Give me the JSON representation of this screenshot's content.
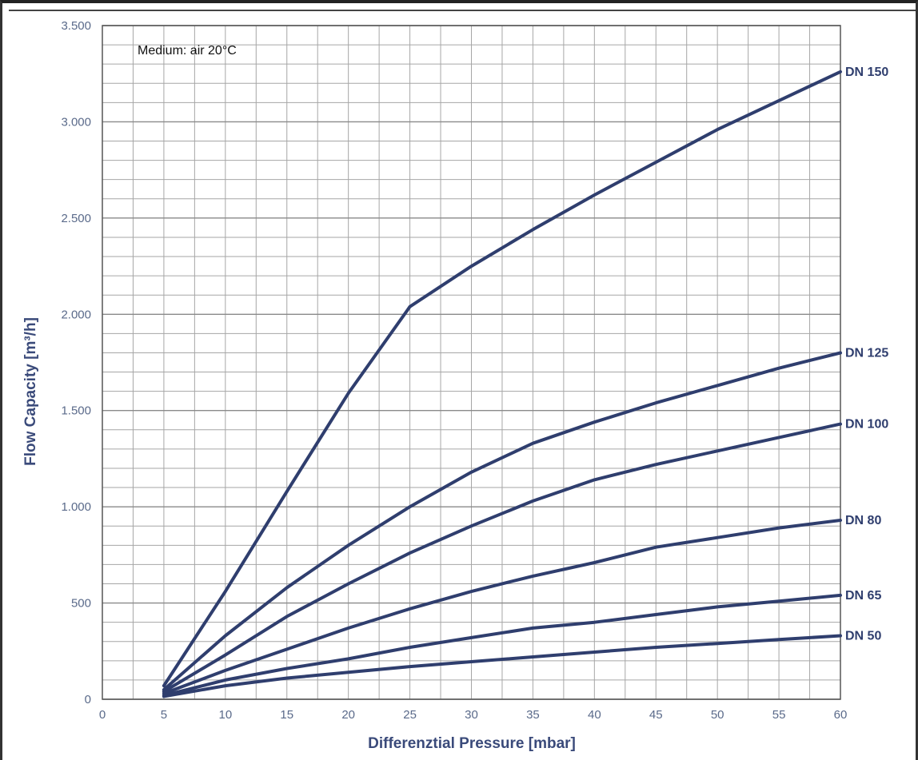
{
  "chart_data": {
    "type": "line",
    "title": "",
    "annotation": "Medium: air  20°C",
    "xlabel": "Differenztial Pressure [mbar]",
    "ylabel": "Flow Capacity [m³/h]",
    "xlim": [
      0,
      60
    ],
    "ylim": [
      0,
      3500
    ],
    "x_ticks": [
      0,
      5,
      10,
      15,
      20,
      25,
      30,
      35,
      40,
      45,
      50,
      55,
      60
    ],
    "x_tick_labels": [
      "0",
      "5",
      "10",
      "15",
      "20",
      "25",
      "30",
      "35",
      "40",
      "45",
      "50",
      "55",
      "60"
    ],
    "y_ticks": [
      0,
      500,
      1000,
      1500,
      2000,
      2500,
      3000,
      3500
    ],
    "y_tick_labels": [
      "0",
      "500",
      "1.000",
      "1.500",
      "2.000",
      "2.500",
      "3.000",
      "3.500"
    ],
    "grid": true,
    "legend_placement": "right-end labels",
    "line_color": "#2f3e6e",
    "grid_color": "#a6a6a6",
    "series": [
      {
        "name": "DN 150",
        "x": [
          5,
          10,
          15,
          20,
          25,
          30,
          35,
          40,
          45,
          50,
          55,
          60
        ],
        "y": [
          70,
          560,
          1080,
          1590,
          2040,
          2250,
          2440,
          2620,
          2790,
          2960,
          3110,
          3260
        ]
      },
      {
        "name": "DN 125",
        "x": [
          5,
          10,
          15,
          20,
          25,
          30,
          35,
          40,
          45,
          50,
          55,
          60
        ],
        "y": [
          50,
          330,
          580,
          800,
          1000,
          1180,
          1330,
          1440,
          1540,
          1630,
          1720,
          1800
        ]
      },
      {
        "name": "DN 100",
        "x": [
          5,
          10,
          15,
          20,
          25,
          30,
          35,
          40,
          45,
          50,
          55,
          60
        ],
        "y": [
          40,
          230,
          430,
          600,
          760,
          900,
          1030,
          1140,
          1220,
          1290,
          1360,
          1430
        ]
      },
      {
        "name": "DN 80",
        "x": [
          5,
          10,
          15,
          20,
          25,
          30,
          35,
          40,
          45,
          50,
          55,
          60
        ],
        "y": [
          30,
          150,
          260,
          370,
          470,
          560,
          640,
          710,
          790,
          840,
          890,
          930
        ]
      },
      {
        "name": "DN 65",
        "x": [
          5,
          10,
          15,
          20,
          25,
          30,
          35,
          40,
          45,
          50,
          55,
          60
        ],
        "y": [
          20,
          100,
          160,
          210,
          270,
          320,
          370,
          400,
          440,
          480,
          510,
          540
        ]
      },
      {
        "name": "DN 50",
        "x": [
          5,
          10,
          15,
          20,
          25,
          30,
          35,
          40,
          45,
          50,
          55,
          60
        ],
        "y": [
          15,
          70,
          110,
          140,
          170,
          195,
          220,
          245,
          270,
          290,
          310,
          330
        ]
      }
    ]
  }
}
